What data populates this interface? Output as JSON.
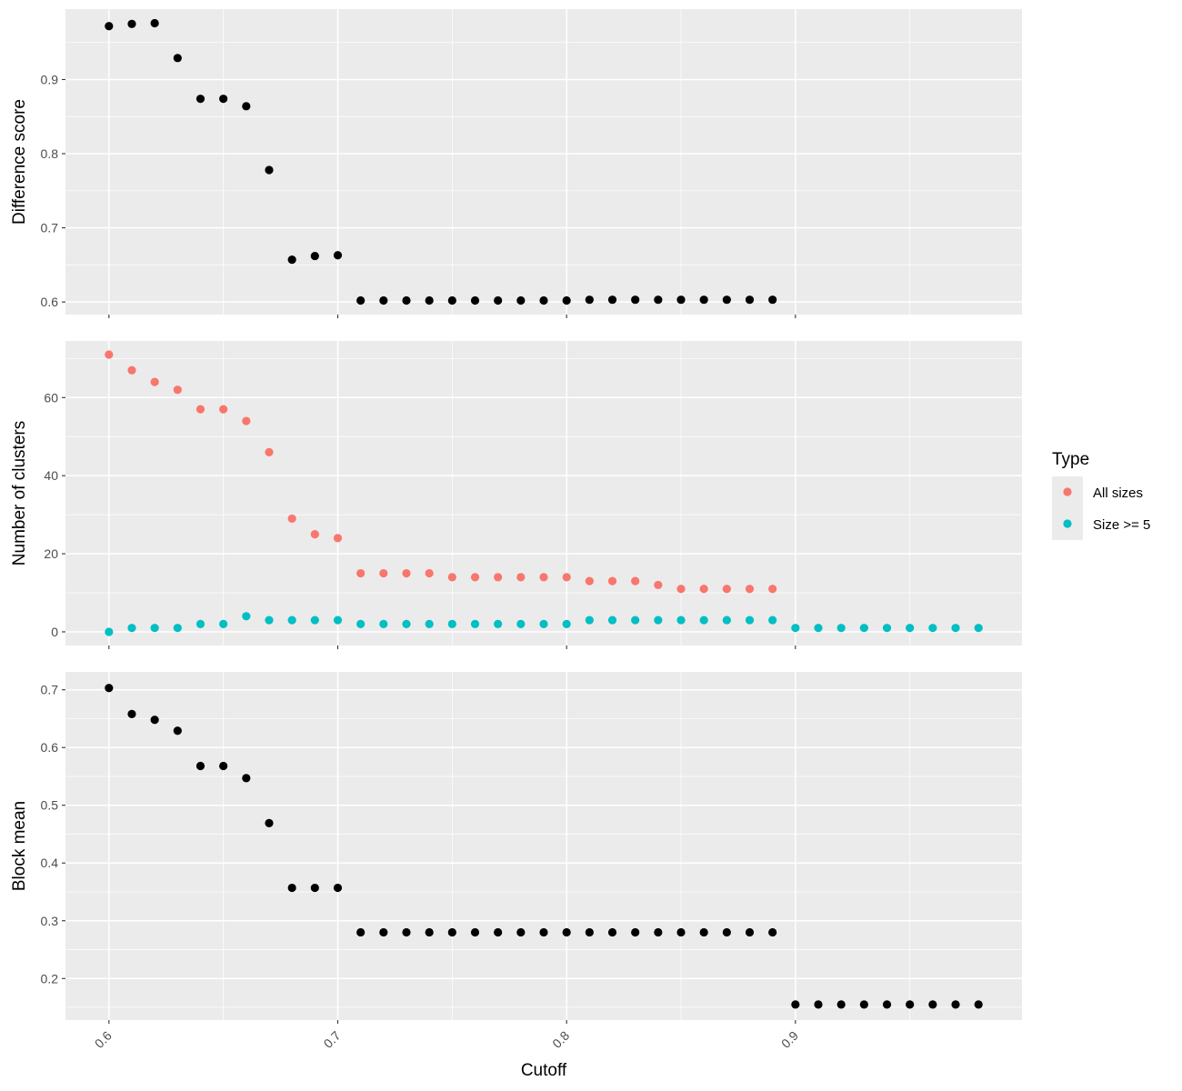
{
  "chart_data": {
    "type": "scatter",
    "xlabel": "Cutoff",
    "xlim": [
      0.581,
      0.999
    ],
    "x_ticks": [
      0.6,
      0.7,
      0.8,
      0.9
    ],
    "x_tick_labels": [
      "0.6",
      "0.7",
      "0.8",
      "0.9"
    ],
    "grid": true,
    "legend": {
      "title": "Type",
      "position": "right",
      "entries": [
        {
          "name": "All sizes",
          "color": "#F8766D"
        },
        {
          "name": "Size >= 5",
          "color": "#00BFC4"
        }
      ]
    },
    "panels": [
      {
        "ylabel": "Difference score",
        "ylim": [
          0.583,
          0.995
        ],
        "y_ticks": [
          0.6,
          0.7,
          0.8,
          0.9
        ],
        "y_tick_labels": [
          "0.6",
          "0.7",
          "0.8",
          "0.9"
        ],
        "series": [
          {
            "color": "#000000",
            "x": [
              0.6,
              0.61,
              0.62,
              0.63,
              0.64,
              0.65,
              0.66,
              0.67,
              0.68,
              0.69,
              0.7,
              0.71,
              0.72,
              0.73,
              0.74,
              0.75,
              0.76,
              0.77,
              0.78,
              0.79,
              0.8,
              0.81,
              0.82,
              0.83,
              0.84,
              0.85,
              0.86,
              0.87,
              0.88,
              0.89
            ],
            "y": [
              0.972,
              0.975,
              0.976,
              0.929,
              0.874,
              0.874,
              0.864,
              0.778,
              0.657,
              0.662,
              0.663,
              0.602,
              0.602,
              0.602,
              0.602,
              0.602,
              0.602,
              0.602,
              0.602,
              0.602,
              0.602,
              0.603,
              0.603,
              0.603,
              0.603,
              0.603,
              0.603,
              0.603,
              0.603,
              0.603
            ]
          }
        ]
      },
      {
        "ylabel": "Number of clusters",
        "ylim": [
          -3.5,
          74.5
        ],
        "y_ticks": [
          0,
          20,
          40,
          60
        ],
        "y_tick_labels": [
          "0",
          "20",
          "40",
          "60"
        ],
        "series": [
          {
            "name": "All sizes",
            "color": "#F8766D",
            "x": [
              0.6,
              0.61,
              0.62,
              0.63,
              0.64,
              0.65,
              0.66,
              0.67,
              0.68,
              0.69,
              0.7,
              0.71,
              0.72,
              0.73,
              0.74,
              0.75,
              0.76,
              0.77,
              0.78,
              0.79,
              0.8,
              0.81,
              0.82,
              0.83,
              0.84,
              0.85,
              0.86,
              0.87,
              0.88,
              0.89
            ],
            "y": [
              71,
              67,
              64,
              62,
              57,
              57,
              54,
              46,
              29,
              25,
              24,
              15,
              15,
              15,
              15,
              14,
              14,
              14,
              14,
              14,
              14,
              13,
              13,
              13,
              12,
              11,
              11,
              11,
              11,
              11
            ]
          },
          {
            "name": "Size >= 5",
            "color": "#00BFC4",
            "x": [
              0.6,
              0.61,
              0.62,
              0.63,
              0.64,
              0.65,
              0.66,
              0.67,
              0.68,
              0.69,
              0.7,
              0.71,
              0.72,
              0.73,
              0.74,
              0.75,
              0.76,
              0.77,
              0.78,
              0.79,
              0.8,
              0.81,
              0.82,
              0.83,
              0.84,
              0.85,
              0.86,
              0.87,
              0.88,
              0.89,
              0.9,
              0.91,
              0.92,
              0.93,
              0.94,
              0.95,
              0.96,
              0.97,
              0.98
            ],
            "y": [
              0,
              1,
              1,
              1,
              2,
              2,
              4,
              3,
              3,
              3,
              3,
              2,
              2,
              2,
              2,
              2,
              2,
              2,
              2,
              2,
              2,
              3,
              3,
              3,
              3,
              3,
              3,
              3,
              3,
              3,
              1,
              1,
              1,
              1,
              1,
              1,
              1,
              1,
              1
            ]
          }
        ]
      },
      {
        "ylabel": "Block mean",
        "ylim": [
          0.128,
          0.731
        ],
        "y_ticks": [
          0.2,
          0.3,
          0.4,
          0.5,
          0.6,
          0.7
        ],
        "y_tick_labels": [
          "0.2",
          "0.3",
          "0.4",
          "0.5",
          "0.6",
          "0.7"
        ],
        "series": [
          {
            "color": "#000000",
            "x": [
              0.6,
              0.61,
              0.62,
              0.63,
              0.64,
              0.65,
              0.66,
              0.67,
              0.68,
              0.69,
              0.7,
              0.71,
              0.72,
              0.73,
              0.74,
              0.75,
              0.76,
              0.77,
              0.78,
              0.79,
              0.8,
              0.81,
              0.82,
              0.83,
              0.84,
              0.85,
              0.86,
              0.87,
              0.88,
              0.89,
              0.9,
              0.91,
              0.92,
              0.93,
              0.94,
              0.95,
              0.96,
              0.97,
              0.98
            ],
            "y": [
              0.703,
              0.658,
              0.648,
              0.629,
              0.568,
              0.568,
              0.547,
              0.469,
              0.357,
              0.357,
              0.357,
              0.28,
              0.28,
              0.28,
              0.28,
              0.28,
              0.28,
              0.28,
              0.28,
              0.28,
              0.28,
              0.28,
              0.28,
              0.28,
              0.28,
              0.28,
              0.28,
              0.28,
              0.28,
              0.28,
              0.155,
              0.155,
              0.155,
              0.155,
              0.155,
              0.155,
              0.155,
              0.155,
              0.155
            ]
          }
        ]
      }
    ]
  }
}
